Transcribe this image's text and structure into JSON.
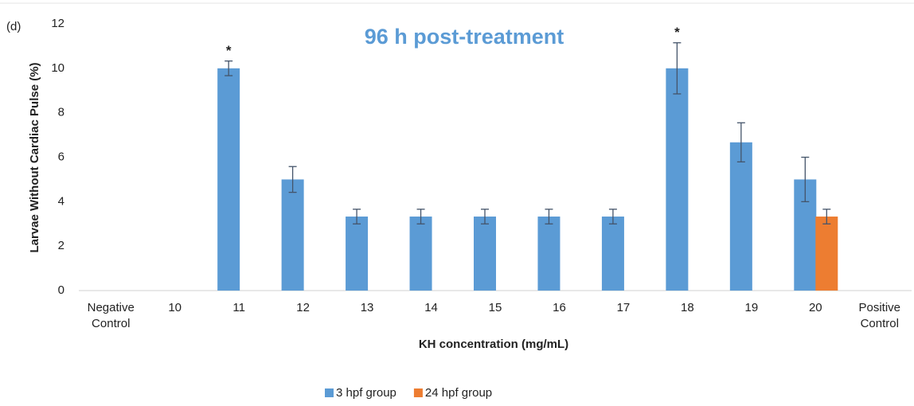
{
  "chart_data": {
    "type": "bar",
    "title": "96 h post-treatment",
    "panel_label": "(d)",
    "x_label": "KH concentration (mg/mL)",
    "y_label": "Larvae Without Cardiac Pulse (%)",
    "categories": [
      "Negative Control",
      "10",
      "11",
      "12",
      "13",
      "14",
      "15",
      "16",
      "17",
      "18",
      "19",
      "20",
      "Positive Control"
    ],
    "series": [
      {
        "name": "3 hpf group",
        "color": "#5b9bd5",
        "values": [
          0,
          0,
          10,
          5,
          3.33,
          3.33,
          3.33,
          3.33,
          3.33,
          10,
          6.67,
          5,
          0
        ],
        "errors": [
          0,
          0,
          0.33,
          0.58,
          0.33,
          0.33,
          0.33,
          0.33,
          0.33,
          1.15,
          0.88,
          1.0,
          0
        ]
      },
      {
        "name": "24 hpf group",
        "color": "#ed7d31",
        "values": [
          0,
          0,
          0,
          0,
          0,
          0,
          0,
          0,
          0,
          0,
          0,
          3.33,
          0
        ],
        "errors": [
          0,
          0,
          0,
          0,
          0,
          0,
          0,
          0,
          0,
          0,
          0,
          0.33,
          0
        ]
      }
    ],
    "annotations": [
      {
        "text": "*",
        "category": "11"
      },
      {
        "text": "*",
        "category": "18"
      }
    ],
    "ylim": [
      0,
      12
    ],
    "yticks": [
      0,
      2,
      4,
      6,
      8,
      10,
      12
    ],
    "legend": "bottom"
  }
}
